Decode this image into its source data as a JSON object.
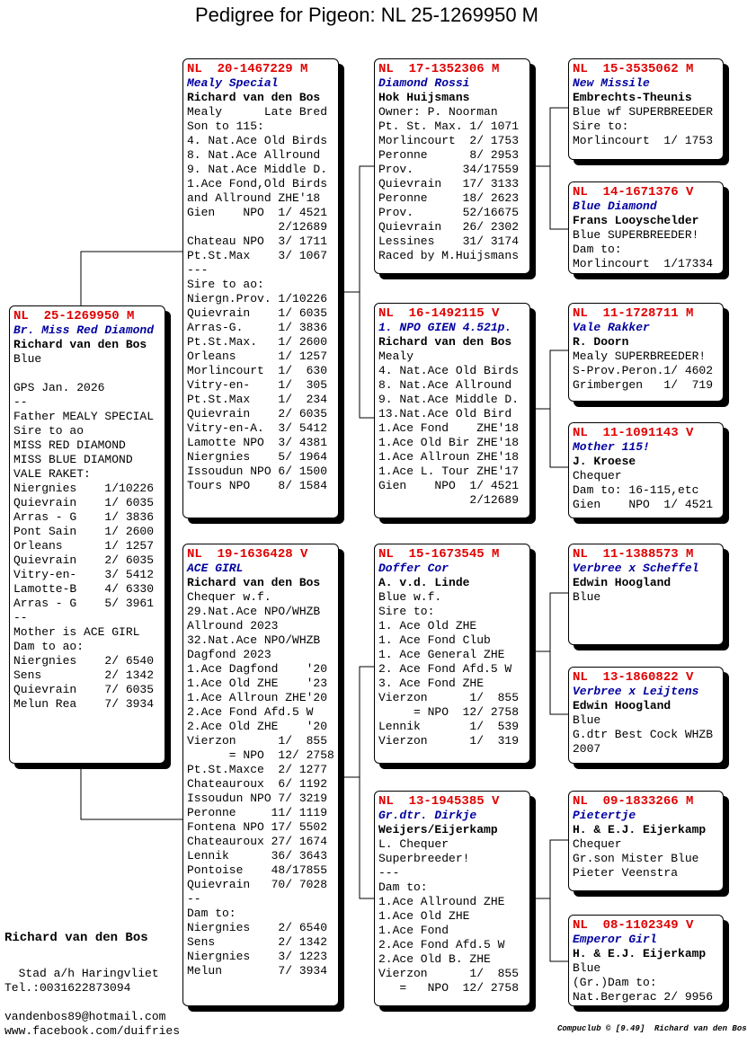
{
  "title": "Pedigree for Pigeon: NL  25-1269950 M",
  "boxes": [
    {
      "ring": "NL  25-1269950 M",
      "name": "Br. Miss Red Diamond",
      "owner": "Richard van den Bos",
      "paragraphs": [
        [
          "Blue"
        ],
        [
          "GPS Jan. 2026",
          "--",
          "Father MEALY SPECIAL",
          "Sire to ao",
          "MISS RED DIAMOND",
          "MISS BLUE DIAMOND",
          "VALE RAKET:",
          "Niergnies    1/10226",
          "Quievrain    1/ 6035",
          "Arras - G    1/ 3836",
          "Pont Sain    1/ 2600",
          "Orleans      1/ 1257",
          "Quievrain    2/ 6035",
          "Vitry-en-    3/ 5412",
          "Lamotte-B    4/ 6330",
          "Arras - G    5/ 3961",
          "--",
          "Mother is ACE GIRL",
          "Dam to ao:",
          "Niergnies    2/ 6540",
          "Sens         2/ 1342",
          "Quievrain    7/ 6035",
          "Melun Rea    7/ 3934"
        ]
      ]
    },
    {
      "ring": "NL  20-1467229 M",
      "name": "Mealy Special",
      "owner": "Richard van den Bos",
      "paragraphs": [
        [
          "Mealy      Late Bred",
          "Son to 115:",
          "4. Nat.Ace Old Birds",
          "8. Nat.Ace Allround",
          "9. Nat.Ace Middle D.",
          "1.Ace Fond,Old Birds",
          "and Allround ZHE'18",
          "Gien    NPO  1/ 4521",
          "             2/12689",
          "Chateau NPO  3/ 1711",
          "Pt.St.Max    3/ 1067",
          "---",
          "Sire to ao:",
          "Niergn.Prov. 1/10226",
          "Quievrain    1/ 6035",
          "Arras-G.     1/ 3836",
          "Pt.St.Max.   1/ 2600",
          "Orleans      1/ 1257",
          "Morlincourt  1/  630",
          "Vitry-en-    1/  305",
          "Pt.St.Max    1/  234",
          "Quievrain    2/ 6035",
          "Vitry-en-A.  3/ 5412",
          "Lamotte NPO  3/ 4381",
          "Niergnies    5/ 1964",
          "Issoudun NPO 6/ 1500",
          "Tours NPO    8/ 1584"
        ]
      ]
    },
    {
      "ring": "NL  19-1636428 V",
      "name": "ACE GIRL",
      "owner": "Richard van den Bos",
      "paragraphs": [
        [
          "Chequer w.f.",
          "29.Nat.Ace NPO/WHZB",
          "Allround 2023",
          "32.Nat.Ace NPO/WHZB",
          "Dagfond 2023",
          "1.Ace Dagfond    '20",
          "1.Ace Old ZHE    '23",
          "1.Ace Allroun ZHE'20",
          "2.Ace Fond Afd.5 W",
          "2.Ace Old ZHE    '20",
          "Vierzon      1/  855",
          "      = NPO  12/ 2758",
          "Pt.St.Maxce  2/ 1277",
          "Chateauroux  6/ 1192",
          "Issoudun NPO 7/ 3219",
          "Peronne     11/ 1119",
          "Fontena NPO 17/ 5502",
          "Chateauroux 27/ 1674",
          "Lennik      36/ 3643",
          "Pontoise    48/17855",
          "Quievrain   70/ 7028",
          "--",
          "Dam to:",
          "Niergnies    2/ 6540",
          "Sens         2/ 1342",
          "Niergnies    3/ 1223",
          "Melun        7/ 3934"
        ]
      ]
    },
    {
      "ring": "NL  17-1352306 M",
      "name": "Diamond Rossi",
      "owner": "Hok Huijsmans",
      "paragraphs": [
        [
          "Owner: P. Noorman",
          "Pt. St. Max. 1/ 1071",
          "Morlincourt  2/ 1753",
          "Peronne      8/ 2953",
          "Prov.       34/17559",
          "Quievrain   17/ 3133",
          "Peronne     18/ 2623",
          "Prov.       52/16675",
          "Quievrain   26/ 2302",
          "Lessines    31/ 3174",
          "Raced by M.Huijsmans"
        ]
      ]
    },
    {
      "ring": "NL  16-1492115 V",
      "name": "1. NPO GIEN 4.521p.",
      "owner": "Richard van den Bos",
      "paragraphs": [
        [
          "Mealy",
          "4. Nat.Ace Old Birds",
          "8. Nat.Ace Allround",
          "9. Nat.Ace Middle D.",
          "13.Nat.Ace Old Bird",
          "1.Ace Fond    ZHE'18",
          "1.Ace Old Bir ZHE'18",
          "1.Ace Allroun ZHE'18",
          "1.Ace L. Tour ZHE'17",
          "Gien    NPO  1/ 4521",
          "             2/12689"
        ]
      ]
    },
    {
      "ring": "NL  15-1673545 M",
      "name": "Doffer Cor",
      "owner": "A. v.d. Linde",
      "paragraphs": [
        [
          "Blue w.f.",
          "Sire to:",
          "1. Ace Old ZHE",
          "1. Ace Fond Club",
          "1. Ace General ZHE",
          "2. Ace Fond Afd.5 W",
          "3. Ace Fond ZHE",
          "Vierzon      1/  855",
          "     = NPO  12/ 2758",
          "Lennik       1/  539",
          "Vierzon      1/  319"
        ]
      ]
    },
    {
      "ring": "NL  13-1945385 V",
      "name": "Gr.dtr. Dirkje",
      "owner": "Weijers/Eijerkamp",
      "paragraphs": [
        [
          "L. Chequer",
          "Superbreeder!",
          "---",
          "Dam to:",
          "1.Ace Allround ZHE",
          "1.Ace Old ZHE",
          "1.Ace Fond",
          "2.Ace Fond Afd.5 W",
          "2.Ace Old B. ZHE",
          "Vierzon      1/  855",
          "   =   NPO  12/ 2758"
        ]
      ]
    },
    {
      "ring": "NL  15-3535062 M",
      "name": "New Missile",
      "owner": "Embrechts-Theunis",
      "paragraphs": [
        [
          "Blue wf SUPERBREEDER",
          "Sire to:",
          "Morlincourt  1/ 1753"
        ]
      ]
    },
    {
      "ring": "NL  14-1671376 V",
      "name": "Blue Diamond",
      "owner": "Frans Looyschelder",
      "paragraphs": [
        [
          "Blue SUPERBREEDER!",
          "Dam to:",
          "Morlincourt  1/17334"
        ]
      ]
    },
    {
      "ring": "NL  11-1728711 M",
      "name": "Vale Rakker",
      "owner": "R. Doorn",
      "paragraphs": [
        [
          "Mealy SUPERBREEDER!",
          "S-Prov.Peron.1/ 4602",
          "Grimbergen   1/  719"
        ]
      ]
    },
    {
      "ring": "NL  11-1091143 V",
      "name": "Mother 115!",
      "owner": "J. Kroese",
      "paragraphs": [
        [
          "Chequer",
          "Dam to: 16-115,etc",
          "Gien    NPO  1/ 4521"
        ]
      ]
    },
    {
      "ring": "NL  11-1388573 M",
      "name": "Verbree x Scheffel",
      "owner": "Edwin Hoogland",
      "paragraphs": [
        [
          "Blue"
        ]
      ]
    },
    {
      "ring": "NL  13-1860822 V",
      "name": "Verbree x Leijtens",
      "owner": "Edwin Hoogland",
      "paragraphs": [
        [
          "Blue",
          "G.dtr Best Cock WHZB",
          "2007"
        ]
      ]
    },
    {
      "ring": "NL  09-1833266 M",
      "name": "Pietertje",
      "owner": "H. & E.J. Eijerkamp",
      "paragraphs": [
        [
          "Chequer",
          "Gr.son Mister Blue",
          "Pieter Veenstra"
        ]
      ]
    },
    {
      "ring": "NL  08-1102349 V",
      "name": "Emperor Girl",
      "owner": "H. & E.J. Eijerkamp",
      "paragraphs": [
        [
          "Blue",
          "(Gr.)Dam to:",
          "Nat.Bergerac 2/ 9956"
        ]
      ]
    }
  ],
  "footer": {
    "name": "Richard van den Bos",
    "address": "  Stad a/h Haringvliet",
    "phone": "Tel.:0031622873094",
    "email": "vandenbos89@hotmail.com",
    "web": "www.facebook.com/duifries",
    "credit": "Compuclub © [9.49]  Richard van den Bos"
  }
}
